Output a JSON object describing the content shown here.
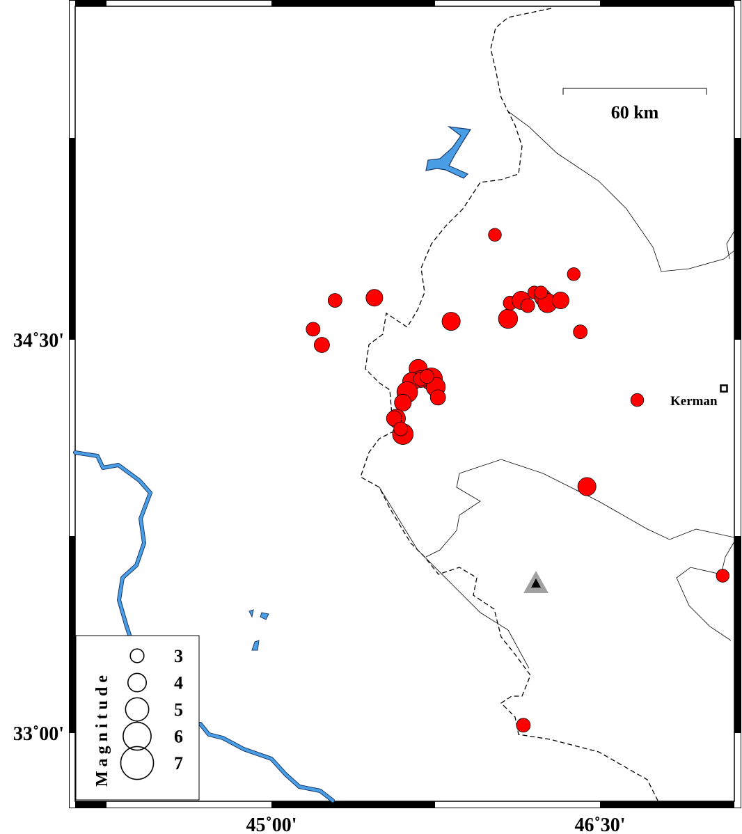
{
  "map": {
    "axes": {
      "x_ticks": [
        {
          "lon": 45.0,
          "label": "45˚00'"
        },
        {
          "lon": 46.5,
          "label": "46˚30'"
        }
      ],
      "y_ticks": [
        {
          "lat": 34.5,
          "label": "34˚30'"
        },
        {
          "lat": 33.0,
          "label": "33˚00'"
        }
      ]
    },
    "scale_bar": {
      "label": "60 km"
    },
    "city": {
      "name": "Kerman",
      "icon": "square-city-icon",
      "lon": 47.08,
      "lat": 34.28
    },
    "station": {
      "icon": "triangle-station-icon",
      "lon": 46.17,
      "lat": 33.63
    },
    "colors": {
      "event_fill": "#ff0000",
      "water": "#4a9ee6",
      "station": "#a0a0a0"
    },
    "legend": {
      "title": "Magnitude",
      "entries": [
        {
          "mag": 3,
          "label": "3"
        },
        {
          "mag": 4,
          "label": "4"
        },
        {
          "mag": 5,
          "label": "5"
        },
        {
          "mag": 6,
          "label": "6"
        },
        {
          "mag": 7,
          "label": "7"
        }
      ]
    },
    "events": [
      {
        "lon": 46.02,
        "lat": 34.9,
        "mag": 2.8
      },
      {
        "lon": 45.29,
        "lat": 34.65,
        "mag": 3.0
      },
      {
        "lon": 45.47,
        "lat": 34.66,
        "mag": 3.6
      },
      {
        "lon": 45.19,
        "lat": 34.54,
        "mag": 3.0
      },
      {
        "lon": 45.23,
        "lat": 34.48,
        "mag": 3.3
      },
      {
        "lon": 45.82,
        "lat": 34.57,
        "mag": 3.9
      },
      {
        "lon": 46.38,
        "lat": 34.75,
        "mag": 2.8
      },
      {
        "lon": 46.41,
        "lat": 34.53,
        "mag": 3.0
      },
      {
        "lon": 46.08,
        "lat": 34.58,
        "mag": 4.1
      },
      {
        "lon": 46.09,
        "lat": 34.64,
        "mag": 3.0
      },
      {
        "lon": 46.14,
        "lat": 34.65,
        "mag": 3.9
      },
      {
        "lon": 46.17,
        "lat": 34.63,
        "mag": 3.0
      },
      {
        "lon": 46.2,
        "lat": 34.68,
        "mag": 2.8
      },
      {
        "lon": 46.24,
        "lat": 34.66,
        "mag": 3.6
      },
      {
        "lon": 46.26,
        "lat": 34.64,
        "mag": 4.1
      },
      {
        "lon": 46.23,
        "lat": 34.68,
        "mag": 2.8
      },
      {
        "lon": 46.32,
        "lat": 34.65,
        "mag": 3.6
      },
      {
        "lon": 46.67,
        "lat": 34.27,
        "mag": 2.8
      },
      {
        "lon": 46.44,
        "lat": 33.94,
        "mag": 3.9
      },
      {
        "lon": 47.06,
        "lat": 33.6,
        "mag": 2.8
      },
      {
        "lon": 46.15,
        "lat": 33.03,
        "mag": 3.0
      },
      {
        "lon": 45.67,
        "lat": 34.39,
        "mag": 3.9
      },
      {
        "lon": 45.73,
        "lat": 34.35,
        "mag": 4.7
      },
      {
        "lon": 45.75,
        "lat": 34.32,
        "mag": 4.1
      },
      {
        "lon": 45.68,
        "lat": 34.35,
        "mag": 3.6
      },
      {
        "lon": 45.64,
        "lat": 34.34,
        "mag": 3.9
      },
      {
        "lon": 45.62,
        "lat": 34.3,
        "mag": 4.4
      },
      {
        "lon": 45.68,
        "lat": 34.35,
        "mag": 3.0
      },
      {
        "lon": 45.76,
        "lat": 34.28,
        "mag": 3.3
      },
      {
        "lon": 45.6,
        "lat": 34.26,
        "mag": 3.6
      },
      {
        "lon": 45.57,
        "lat": 34.2,
        "mag": 3.9
      },
      {
        "lon": 45.56,
        "lat": 34.2,
        "mag": 3.3
      },
      {
        "lon": 45.6,
        "lat": 34.14,
        "mag": 4.4
      },
      {
        "lon": 45.59,
        "lat": 34.16,
        "mag": 3.0
      },
      {
        "lon": 45.71,
        "lat": 34.36,
        "mag": 3.0
      }
    ]
  }
}
